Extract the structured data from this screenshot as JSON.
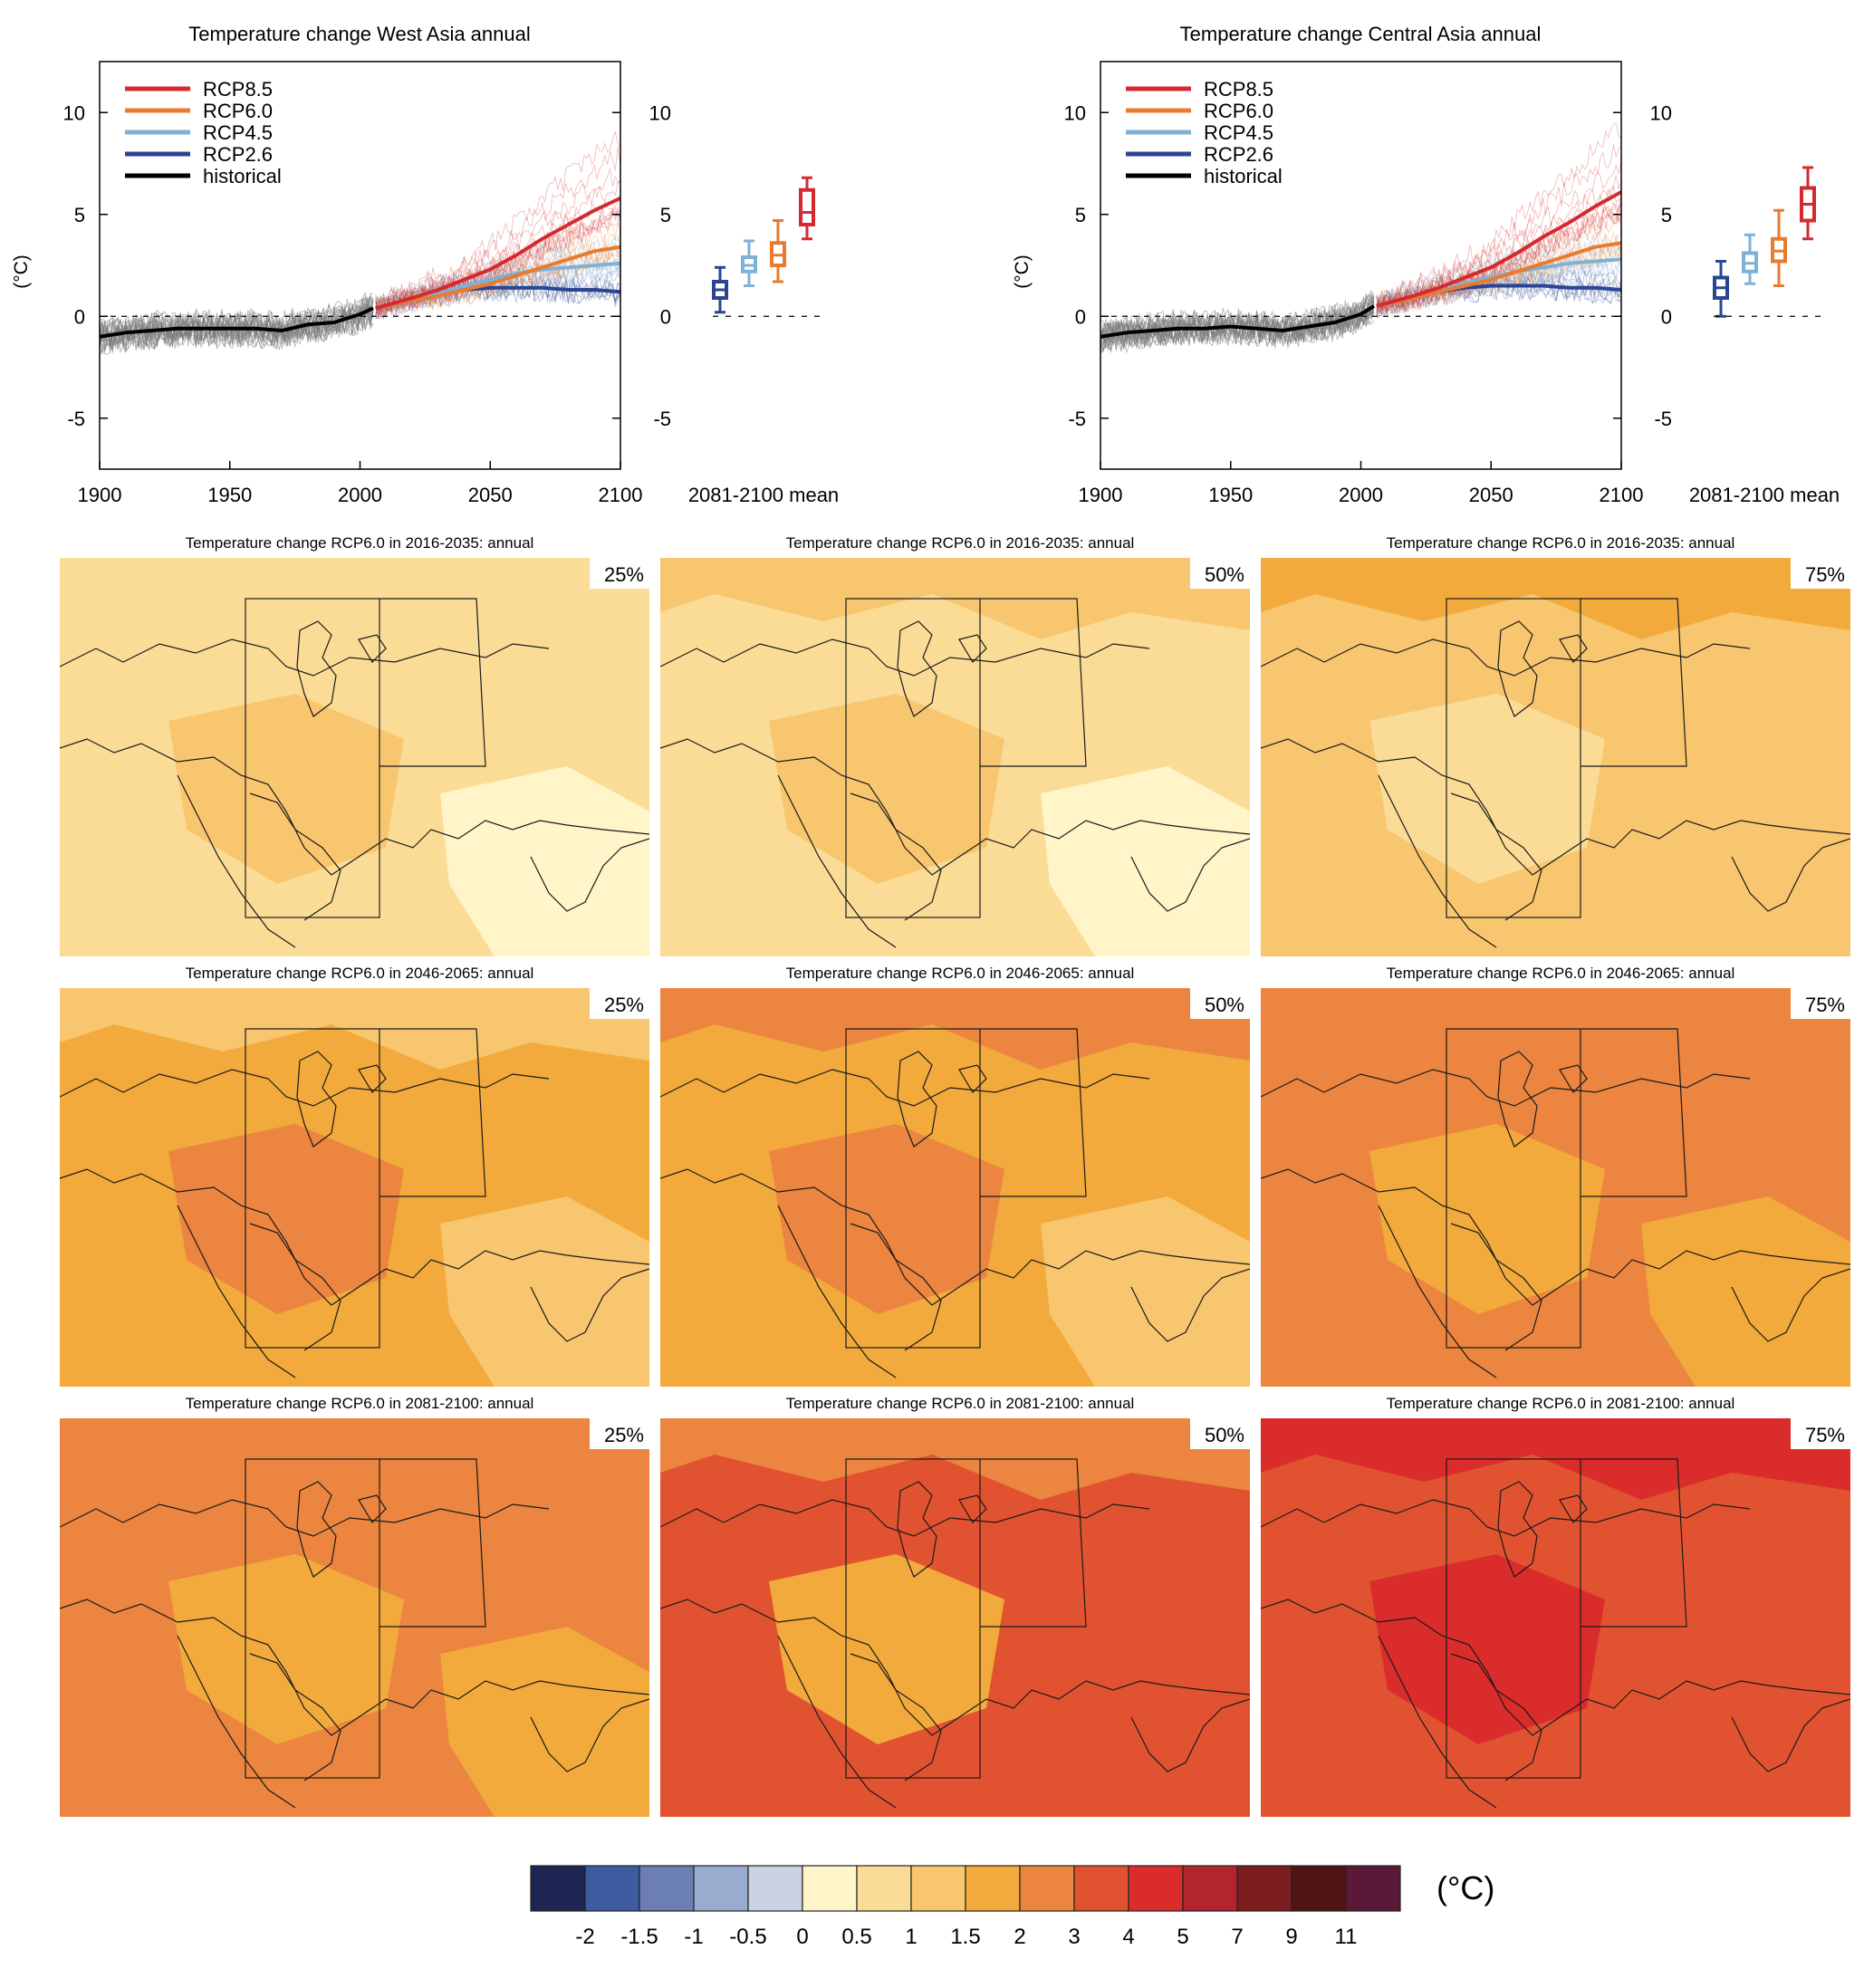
{
  "colors": {
    "rcp85": "#d42a2f",
    "rcp60": "#e87b30",
    "rcp45": "#7fb0d6",
    "rcp26": "#2b4592",
    "historical": "#000000",
    "ensemble_hist": "#7a7a7a"
  },
  "chart_data": [
    {
      "type": "line",
      "title": "Temperature change West Asia annual",
      "ylabel": "(°C)",
      "xlabel": "",
      "xlim": [
        1900,
        2100
      ],
      "ylim": [
        -7.5,
        12.5
      ],
      "xticks": [
        "1900",
        "1950",
        "2000",
        "2050",
        "2100"
      ],
      "yticks": [
        "10",
        "5",
        "0",
        "-5"
      ],
      "legend_position": "top-left",
      "series": [
        {
          "name": "RCP8.5",
          "x": [
            2006,
            2020,
            2030,
            2040,
            2050,
            2060,
            2070,
            2080,
            2090,
            2100
          ],
          "values": [
            0.4,
            0.9,
            1.3,
            1.8,
            2.3,
            3.0,
            3.8,
            4.5,
            5.2,
            5.8
          ]
        },
        {
          "name": "RCP6.0",
          "x": [
            2006,
            2020,
            2030,
            2040,
            2050,
            2060,
            2070,
            2080,
            2090,
            2100
          ],
          "values": [
            0.4,
            0.8,
            1.0,
            1.3,
            1.6,
            2.0,
            2.4,
            2.8,
            3.2,
            3.4
          ]
        },
        {
          "name": "RCP4.5",
          "x": [
            2006,
            2020,
            2030,
            2040,
            2050,
            2060,
            2070,
            2080,
            2090,
            2100
          ],
          "values": [
            0.4,
            0.8,
            1.1,
            1.5,
            1.8,
            2.1,
            2.3,
            2.4,
            2.5,
            2.6
          ]
        },
        {
          "name": "RCP2.6",
          "x": [
            2006,
            2020,
            2030,
            2040,
            2050,
            2060,
            2070,
            2080,
            2090,
            2100
          ],
          "values": [
            0.4,
            0.8,
            1.1,
            1.3,
            1.4,
            1.4,
            1.4,
            1.3,
            1.3,
            1.2
          ]
        },
        {
          "name": "historical",
          "x": [
            1900,
            1910,
            1920,
            1930,
            1940,
            1950,
            1960,
            1970,
            1980,
            1990,
            2000,
            2005
          ],
          "values": [
            -1.0,
            -0.8,
            -0.7,
            -0.6,
            -0.6,
            -0.6,
            -0.6,
            -0.7,
            -0.4,
            -0.3,
            0.1,
            0.4
          ]
        }
      ],
      "mean_2081_2100": {
        "label": "2081-2100 mean",
        "boxes": [
          {
            "name": "RCP2.6",
            "min": 0.2,
            "q1": 0.9,
            "median": 1.3,
            "q3": 1.7,
            "max": 2.4
          },
          {
            "name": "RCP4.5",
            "min": 1.5,
            "q1": 2.2,
            "median": 2.5,
            "q3": 2.9,
            "max": 3.7
          },
          {
            "name": "RCP6.0",
            "min": 1.7,
            "q1": 2.5,
            "median": 3.0,
            "q3": 3.6,
            "max": 4.7
          },
          {
            "name": "RCP8.5",
            "min": 3.8,
            "q1": 4.5,
            "median": 5.1,
            "q3": 6.2,
            "max": 6.8
          }
        ]
      }
    },
    {
      "type": "line",
      "title": "Temperature change Central Asia annual",
      "ylabel": "(°C)",
      "xlabel": "",
      "xlim": [
        1900,
        2100
      ],
      "ylim": [
        -7.5,
        12.5
      ],
      "xticks": [
        "1900",
        "1950",
        "2000",
        "2050",
        "2100"
      ],
      "yticks": [
        "10",
        "5",
        "0",
        "-5"
      ],
      "legend_position": "top-left",
      "series": [
        {
          "name": "RCP8.5",
          "x": [
            2006,
            2020,
            2030,
            2040,
            2050,
            2060,
            2070,
            2080,
            2090,
            2100
          ],
          "values": [
            0.5,
            1.0,
            1.4,
            1.9,
            2.4,
            3.1,
            3.9,
            4.6,
            5.4,
            6.1
          ]
        },
        {
          "name": "RCP6.0",
          "x": [
            2006,
            2020,
            2030,
            2040,
            2050,
            2060,
            2070,
            2080,
            2090,
            2100
          ],
          "values": [
            0.5,
            0.9,
            1.2,
            1.5,
            1.8,
            2.2,
            2.6,
            3.0,
            3.4,
            3.6
          ]
        },
        {
          "name": "RCP4.5",
          "x": [
            2006,
            2020,
            2030,
            2040,
            2050,
            2060,
            2070,
            2080,
            2090,
            2100
          ],
          "values": [
            0.5,
            0.9,
            1.2,
            1.6,
            1.9,
            2.2,
            2.4,
            2.6,
            2.7,
            2.8
          ]
        },
        {
          "name": "RCP2.6",
          "x": [
            2006,
            2020,
            2030,
            2040,
            2050,
            2060,
            2070,
            2080,
            2090,
            2100
          ],
          "values": [
            0.5,
            0.9,
            1.2,
            1.4,
            1.5,
            1.5,
            1.5,
            1.4,
            1.4,
            1.3
          ]
        },
        {
          "name": "historical",
          "x": [
            1900,
            1910,
            1920,
            1930,
            1940,
            1950,
            1960,
            1970,
            1980,
            1990,
            2000,
            2005
          ],
          "values": [
            -1.0,
            -0.8,
            -0.7,
            -0.6,
            -0.6,
            -0.5,
            -0.6,
            -0.7,
            -0.5,
            -0.3,
            0.1,
            0.5
          ]
        }
      ],
      "mean_2081_2100": {
        "label": "2081-2100 mean",
        "boxes": [
          {
            "name": "RCP2.6",
            "min": 0.0,
            "q1": 0.9,
            "median": 1.4,
            "q3": 1.9,
            "max": 2.7
          },
          {
            "name": "RCP4.5",
            "min": 1.6,
            "q1": 2.2,
            "median": 2.6,
            "q3": 3.1,
            "max": 4.0
          },
          {
            "name": "RCP6.0",
            "min": 1.5,
            "q1": 2.7,
            "median": 3.2,
            "q3": 3.8,
            "max": 5.2
          },
          {
            "name": "RCP8.5",
            "min": 3.8,
            "q1": 4.7,
            "median": 5.5,
            "q3": 6.3,
            "max": 7.3
          }
        ]
      }
    },
    {
      "type": "heatmap",
      "grid_columns": [
        "25%",
        "50%",
        "75%"
      ],
      "grid_rows": [
        {
          "title": "Temperature change RCP6.0 in 2016-2035: annual",
          "panels": [
            {
              "percentile": "25%",
              "base_class": "0.5",
              "patches": [
                "0.5",
                "1",
                "0"
              ]
            },
            {
              "percentile": "50%",
              "base_class": "0.5",
              "patches": [
                "1",
                "1",
                "0"
              ]
            },
            {
              "percentile": "75%",
              "base_class": "1",
              "patches": [
                "1.5",
                "0.5",
                "1"
              ]
            }
          ]
        },
        {
          "title": "Temperature change RCP6.0 in 2046-2065: annual",
          "panels": [
            {
              "percentile": "25%",
              "base_class": "1.5",
              "patches": [
                "1",
                "2",
                "1"
              ]
            },
            {
              "percentile": "50%",
              "base_class": "1.5",
              "patches": [
                "2",
                "2",
                "1"
              ]
            },
            {
              "percentile": "75%",
              "base_class": "2",
              "patches": [
                "2",
                "1.5",
                "1.5"
              ]
            }
          ]
        },
        {
          "title": "Temperature change RCP6.0 in 2081-2100: annual",
          "panels": [
            {
              "percentile": "25%",
              "base_class": "2",
              "patches": [
                "2",
                "1.5",
                "1.5"
              ]
            },
            {
              "percentile": "50%",
              "base_class": "3",
              "patches": [
                "2",
                "1.5",
                "3"
              ]
            },
            {
              "percentile": "75%",
              "base_class": "3",
              "patches": [
                "4",
                "4",
                "3"
              ]
            }
          ]
        }
      ],
      "colorbar": {
        "unit": "(°C)",
        "colors": [
          "#1d2553",
          "#3d5b9f",
          "#6b7fb5",
          "#9aabd0",
          "#c9d1e3",
          "#fff5c9",
          "#fbdc97",
          "#f8c66f",
          "#f2aa3c",
          "#eb8540",
          "#e15330",
          "#db2c2c",
          "#b4242c",
          "#7c1d20",
          "#4f1414",
          "#5b1838"
        ],
        "labels": [
          "-2",
          "-1.5",
          "-1",
          "-0.5",
          "0",
          "0.5",
          "1",
          "1.5",
          "2",
          "3",
          "4",
          "5",
          "7",
          "9",
          "11"
        ]
      }
    }
  ]
}
